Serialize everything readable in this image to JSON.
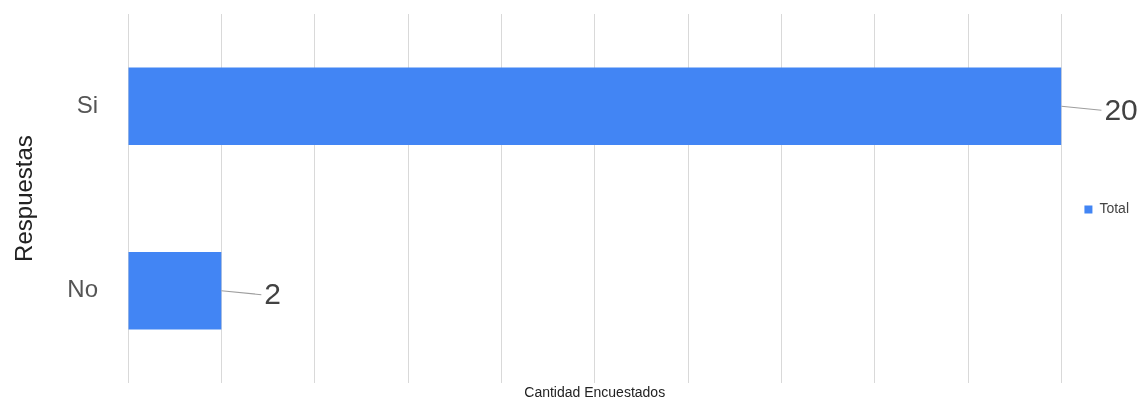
{
  "chart_data": {
    "type": "bar",
    "orientation": "horizontal",
    "xlabel": "Cantidad Encuestados",
    "ylabel": "Respuestas",
    "categories": [
      "Si",
      "No"
    ],
    "series": [
      {
        "name": "Total",
        "color": "#4285f4",
        "values": [
          20,
          2
        ]
      }
    ],
    "xlim": [
      0,
      20
    ],
    "xticks": [
      {
        "value": 0,
        "label": null
      },
      {
        "value": 2,
        "label": null
      },
      {
        "value": 4,
        "label": null
      },
      {
        "value": 6,
        "label": null
      },
      {
        "value": 8,
        "label": null
      },
      {
        "value": 10,
        "label": null
      },
      {
        "value": 12,
        "label": null
      },
      {
        "value": 14,
        "label": null
      },
      {
        "value": 16,
        "label": null
      },
      {
        "value": 18,
        "label": null
      },
      {
        "value": 20,
        "label": null
      }
    ],
    "tick_labels": "y",
    "grid": "x",
    "legend": "right",
    "data_labels": true
  }
}
